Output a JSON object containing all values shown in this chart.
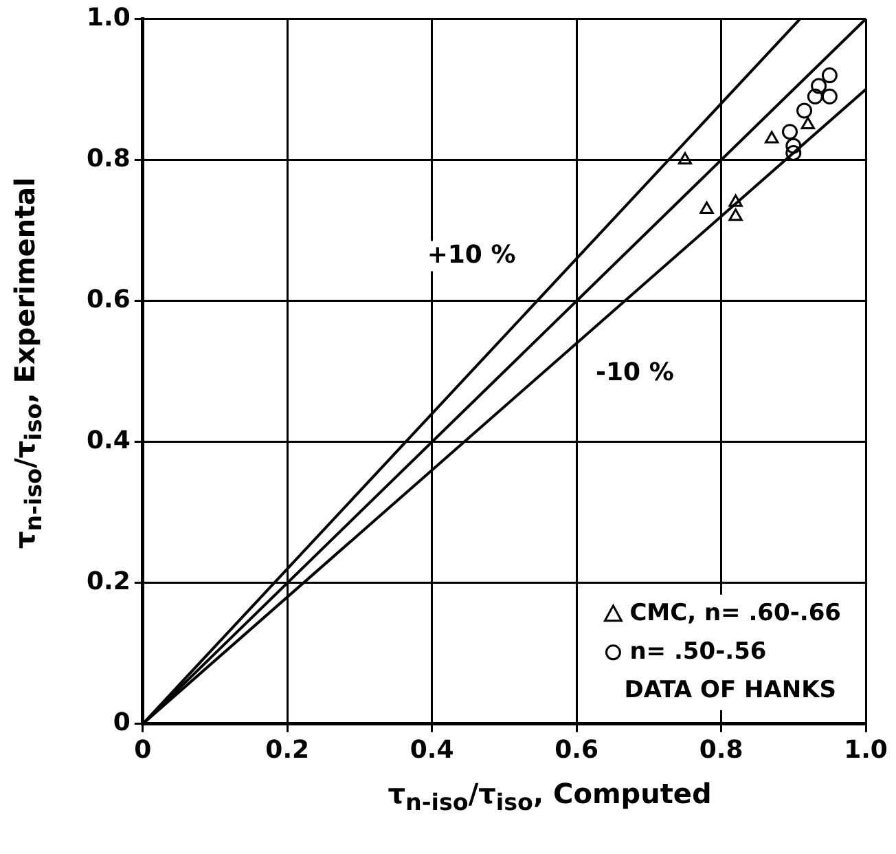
{
  "chart_data": {
    "type": "scatter",
    "xlabel": "τ$_{n-iso}$/τ$_{iso}$, Computed",
    "ylabel": "τ$_{n-iso}$/τ$_{iso}$, Experimental",
    "xlim": [
      0,
      1
    ],
    "ylim": [
      0,
      1
    ],
    "xticks": [
      0,
      0.2,
      0.4,
      0.6,
      0.8,
      {
        "value": 1,
        "label": "1.0"
      }
    ],
    "yticks": [
      0,
      0.2,
      0.4,
      0.6,
      0.8,
      {
        "value": 1,
        "label": "1.0"
      }
    ],
    "grid": true,
    "legend": "bottom right",
    "series": [
      {
        "name": "CMC, n= .60-.66",
        "color": "#000000",
        "marker": "triangle",
        "x": [
          0.75,
          0.78,
          0.82,
          0.82,
          0.87,
          0.92
        ],
        "values": [
          0.8,
          0.73,
          0.74,
          0.72,
          0.83,
          0.85
        ]
      },
      {
        "name": "n= .50-.56",
        "color": "#000000",
        "marker": "circle",
        "x": [
          0.895,
          0.9,
          0.9,
          0.915,
          0.93,
          0.935,
          0.95,
          0.95
        ],
        "values": [
          0.84,
          0.82,
          0.81,
          0.87,
          0.89,
          0.905,
          0.89,
          0.92
        ]
      },
      {
        "type": "line",
        "color": "#000000",
        "marker": "none",
        "line_style": "solid",
        "x": [
          0,
          1
        ],
        "values": [
          0,
          1
        ]
      },
      {
        "type": "line",
        "color": "#000000",
        "marker": "none",
        "line_style": "solid",
        "x": [
          0,
          0.909
        ],
        "values": [
          0,
          1
        ]
      },
      {
        "type": "line",
        "color": "#000000",
        "marker": "none",
        "line_style": "solid",
        "x": [
          0,
          1
        ],
        "values": [
          0,
          0.9
        ]
      }
    ],
    "annotations": [
      {
        "text": "+10 %",
        "x": 0.55,
        "y": 0.605
      },
      {
        "text": "-10 %",
        "x": 0.6,
        "y": 0.54
      },
      "DATA OF HANKS"
    ]
  }
}
